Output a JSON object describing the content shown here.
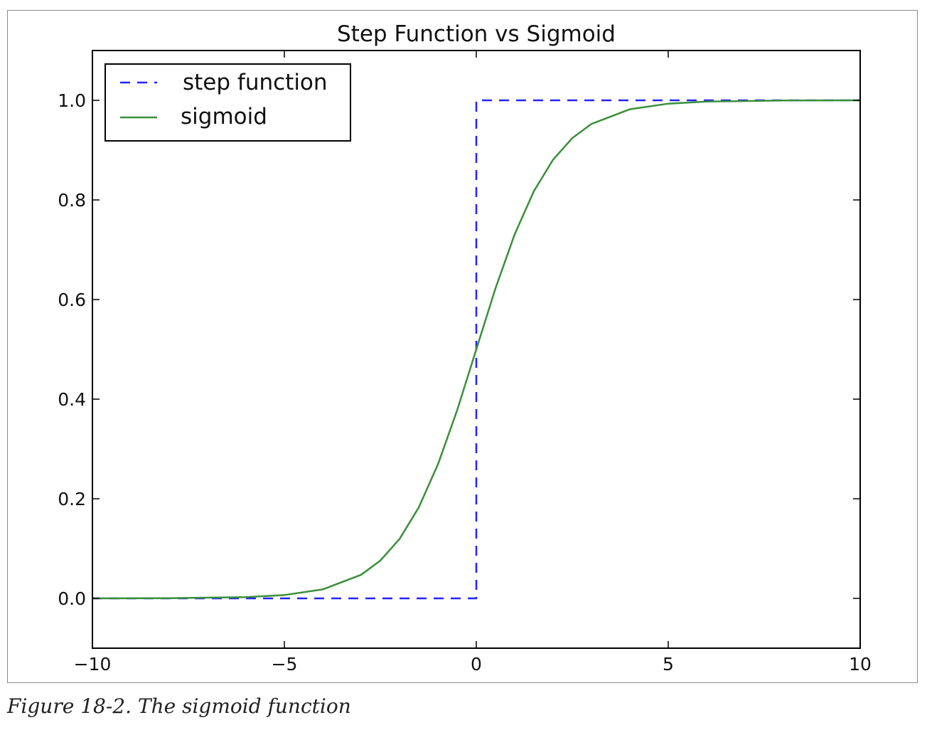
{
  "caption": "Figure 18-2. The sigmoid function",
  "chart_data": {
    "type": "line",
    "title": "Step Function vs Sigmoid",
    "xlabel": "",
    "ylabel": "",
    "xlim": [
      -10,
      10
    ],
    "ylim": [
      -0.1,
      1.1
    ],
    "xticks": [
      -10,
      -5,
      0,
      5,
      10
    ],
    "xtick_labels": [
      "−10",
      "−5",
      "0",
      "5",
      "10"
    ],
    "yticks": [
      0.0,
      0.2,
      0.4,
      0.6,
      0.8,
      1.0
    ],
    "ytick_labels": [
      "0.0",
      "0.2",
      "0.4",
      "0.6",
      "0.8",
      "1.0"
    ],
    "grid": false,
    "legend_position": "top-left",
    "series": [
      {
        "name": "step function",
        "style": "dashed",
        "color": "#2323ff",
        "x": [
          -10,
          0,
          0,
          10
        ],
        "y": [
          0,
          0,
          1,
          1
        ]
      },
      {
        "name": "sigmoid",
        "style": "solid",
        "color": "#3b8f3b",
        "x": [
          -10,
          -8,
          -6,
          -5,
          -4,
          -3,
          -2.5,
          -2,
          -1.5,
          -1,
          -0.5,
          0,
          0.5,
          1,
          1.5,
          2,
          2.5,
          3,
          4,
          5,
          6,
          8,
          10
        ],
        "y": [
          4.54e-05,
          0.000335,
          0.00247,
          0.00669,
          0.018,
          0.0474,
          0.0759,
          0.1192,
          0.1824,
          0.2689,
          0.3775,
          0.5,
          0.6225,
          0.7311,
          0.8176,
          0.8808,
          0.9241,
          0.9526,
          0.982,
          0.9933,
          0.9975,
          0.99966,
          0.99995
        ]
      }
    ]
  }
}
